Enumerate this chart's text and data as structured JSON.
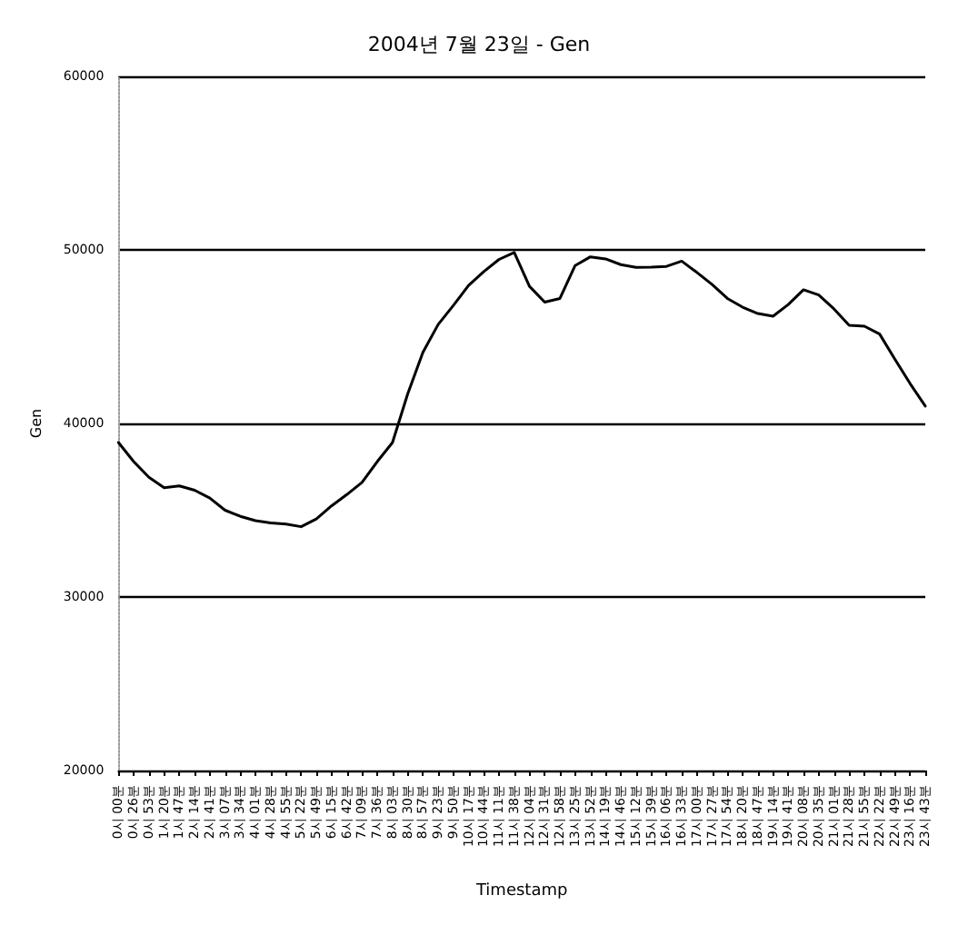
{
  "chart_data": {
    "type": "line",
    "title": "2004년 7월 23일 - Gen",
    "xlabel": "Timestamp",
    "ylabel": "Gen",
    "categories": [
      "0시 00분",
      "0시 26분",
      "0시 53분",
      "1시 20분",
      "1시 47분",
      "2시 14분",
      "2시 41분",
      "3시 07분",
      "3시 34분",
      "4시 01분",
      "4시 28분",
      "4시 55분",
      "5시 22분",
      "5시 49분",
      "6시 15분",
      "6시 42분",
      "7시 09분",
      "7시 36분",
      "8시 03분",
      "8시 30분",
      "8시 57분",
      "9시 23분",
      "9시 50분",
      "10시 17분",
      "10시 44분",
      "11시 11분",
      "11시 38분",
      "12시 04분",
      "12시 31분",
      "12시 58분",
      "13시 25분",
      "13시 52분",
      "14시 19분",
      "14시 46분",
      "15시 12분",
      "15시 39분",
      "16시 06분",
      "16시 33분",
      "17시 00분",
      "17시 27분",
      "17시 54분",
      "18시 20분",
      "18시 47분",
      "19시 14분",
      "19시 41분",
      "20시 08분",
      "20시 35분",
      "21시 01분",
      "21시 28분",
      "21시 55분",
      "22시 22분",
      "22시 49분",
      "23시 16분",
      "23시 43분"
    ],
    "series": [
      {
        "color": "#000000",
        "values": [
          38900,
          37800,
          36900,
          36300,
          36400,
          36150,
          35700,
          35000,
          34650,
          34400,
          34270,
          34200,
          34050,
          34500,
          35250,
          35900,
          36600,
          37800,
          38900,
          41700,
          44100,
          45700,
          46800,
          47950,
          48750,
          49450,
          49850,
          47900,
          46990,
          47200,
          49100,
          49600,
          49480,
          49150,
          48990,
          49000,
          49050,
          49350,
          48700,
          48000,
          47200,
          46700,
          46330,
          46180,
          46850,
          47700,
          47400,
          46600,
          45650,
          45600,
          45150,
          43700,
          42300,
          41000
        ]
      }
    ],
    "ylim": [
      20000,
      60000
    ],
    "yticks": [
      20000,
      30000,
      40000,
      50000,
      60000
    ],
    "grid": "y",
    "marker": "none",
    "line_style": "solid"
  }
}
